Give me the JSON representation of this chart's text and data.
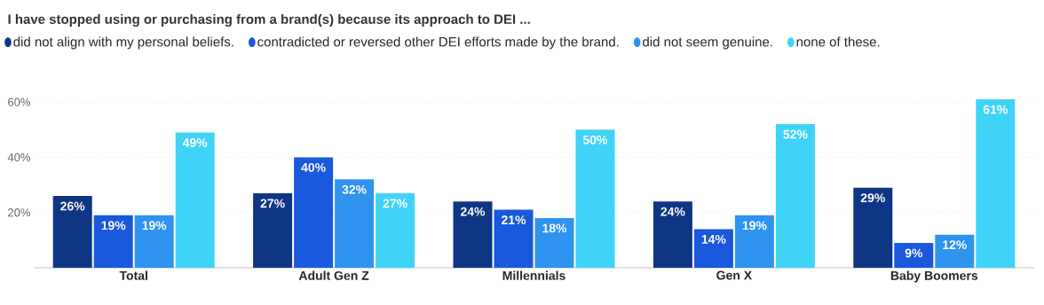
{
  "chart_data": {
    "type": "bar",
    "title": "I have stopped using or purchasing from a brand(s) because its approach to DEI ...",
    "categories": [
      "Total",
      "Adult Gen Z",
      "Millennials",
      "Gen X",
      "Baby Boomers"
    ],
    "series": [
      {
        "name": "did not align with my personal beliefs.",
        "color": "#0f3585",
        "values": [
          26,
          27,
          24,
          24,
          29
        ],
        "value_labels": [
          "26%",
          "27%",
          "24%",
          "24%",
          "29%"
        ]
      },
      {
        "name": "contradicted or reversed other DEI efforts made by the brand.",
        "color": "#1a58dc",
        "values": [
          19,
          40,
          21,
          14,
          9
        ],
        "value_labels": [
          "19%",
          "40%",
          "21%",
          "14%",
          "9%"
        ]
      },
      {
        "name": "did not seem genuine.",
        "color": "#2f93f0",
        "values": [
          19,
          32,
          18,
          19,
          12
        ],
        "value_labels": [
          "19%",
          "32%",
          "18%",
          "19%",
          "12%"
        ]
      },
      {
        "name": "none of these.",
        "color": "#3fd3f8",
        "values": [
          49,
          27,
          50,
          52,
          61
        ],
        "value_labels": [
          "49%",
          "27%",
          "50%",
          "52%",
          "61%"
        ]
      }
    ],
    "ylim": [
      0,
      61
    ],
    "yticks": [
      {
        "value": 20,
        "label": "20%"
      },
      {
        "value": 40,
        "label": "40%"
      },
      {
        "value": 60,
        "label": "60%"
      }
    ],
    "grid": "y",
    "legend": "top"
  }
}
